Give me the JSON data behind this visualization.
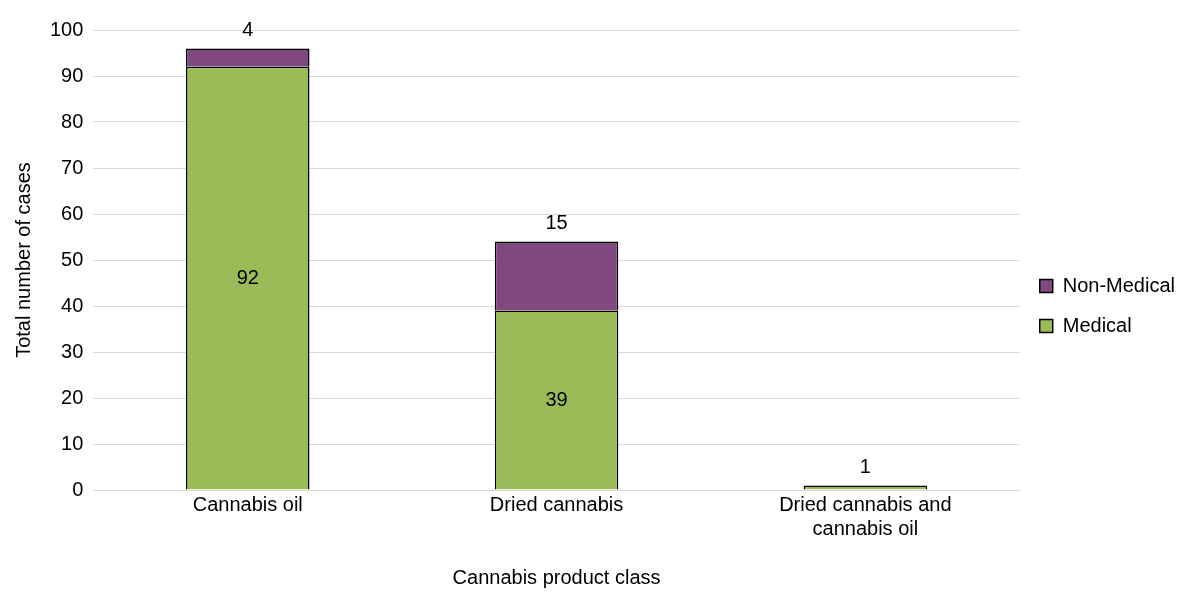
{
  "chart_data": {
    "type": "bar",
    "stacked": true,
    "xlabel": "Cannabis product class",
    "ylabel": "Total number of cases",
    "categories": [
      "Cannabis oil",
      "Dried cannabis",
      "Dried cannabis and cannabis oil"
    ],
    "series": [
      {
        "name": "Medical",
        "color": "#9bbb59",
        "values": [
          92,
          39,
          1
        ],
        "value_labels": [
          "92",
          "39",
          "1"
        ]
      },
      {
        "name": "Non-Medical",
        "color": "#7f497f",
        "values": [
          4,
          15,
          null
        ],
        "value_labels": [
          "4",
          "15",
          null
        ]
      }
    ],
    "ylim": [
      0,
      100
    ],
    "yticks": [
      0,
      10,
      20,
      30,
      40,
      50,
      60,
      70,
      80,
      90,
      100
    ],
    "grid": "y",
    "legend": "right"
  }
}
